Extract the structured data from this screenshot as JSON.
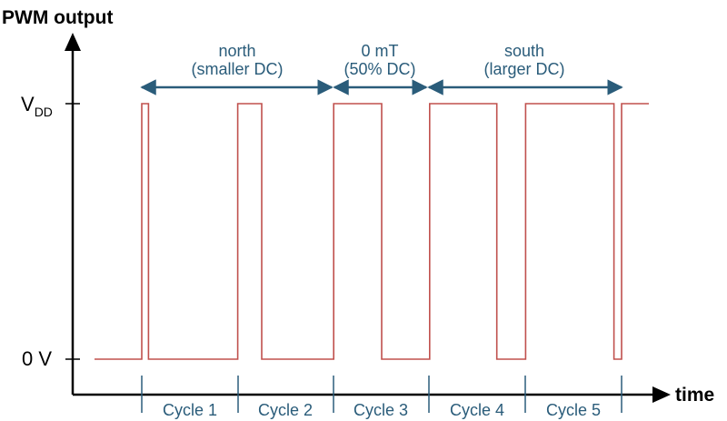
{
  "title": "PWM output",
  "x_axis_label": "time",
  "levels": {
    "high_main": "V",
    "high_sub": "DD",
    "low": "0 V"
  },
  "regions": [
    {
      "line1": "north",
      "line2": "(smaller DC)"
    },
    {
      "line1": "0 mT",
      "line2": "(50% DC)"
    },
    {
      "line1": "south",
      "line2": "(larger DC)"
    }
  ],
  "cycles": [
    "Cycle 1",
    "Cycle 2",
    "Cycle 3",
    "Cycle 4",
    "Cycle 5"
  ],
  "duty_cycles": [
    0.07,
    0.25,
    0.5,
    0.7,
    0.92
  ],
  "colors": {
    "signal": "#c0504d",
    "annotation": "#2a5c7a",
    "axis": "#000000"
  }
}
